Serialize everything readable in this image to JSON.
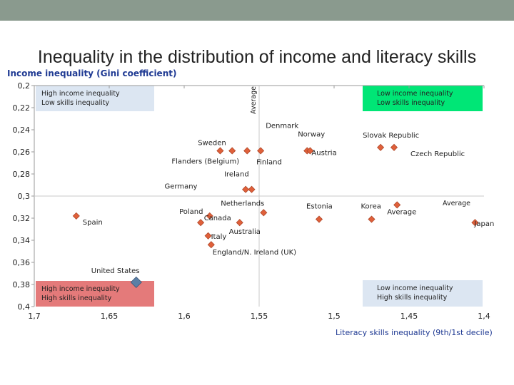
{
  "chart_data": {
    "type": "scatter",
    "title": "Inequality in the distribution of income and literacy skills",
    "ylabel": "Income inequality (Gini coefficient)",
    "xlabel": "Literacy skills inequality (9th/1st decile)",
    "x_reversed": true,
    "y_reversed": true,
    "xlim": [
      1.7,
      1.4
    ],
    "ylim": [
      0.2,
      0.4
    ],
    "x_ticks": [
      1.7,
      1.65,
      1.6,
      1.55,
      1.5,
      1.45,
      1.4
    ],
    "y_ticks": [
      0.2,
      0.22,
      0.24,
      0.26,
      0.28,
      0.3,
      0.32,
      0.34,
      0.36,
      0.38,
      0.4
    ],
    "x_tick_labels": [
      "1,7",
      "1,65",
      "1,6",
      "1,55",
      "1,5",
      "1,45",
      "1,4"
    ],
    "y_tick_labels": [
      "0,2",
      "0,22",
      "0,24",
      "0,26",
      "0,28",
      "0,3",
      "0,32",
      "0,34",
      "0,36",
      "0,38",
      "0,4"
    ],
    "points": [
      {
        "label": "Denmark",
        "x": 1.558,
        "y": 0.259
      },
      {
        "label": "Sweden",
        "x": 1.568,
        "y": 0.259
      },
      {
        "label": "Flanders (Belgium)",
        "x": 1.576,
        "y": 0.259
      },
      {
        "label": "Finland",
        "x": 1.549,
        "y": 0.259
      },
      {
        "label": "Norway",
        "x": 1.518,
        "y": 0.259
      },
      {
        "label": "Austria",
        "x": 1.516,
        "y": 0.259
      },
      {
        "label": "Slovak Republic",
        "x": 1.469,
        "y": 0.256
      },
      {
        "label": "Czech Republic",
        "x": 1.46,
        "y": 0.256
      },
      {
        "label": "Ireland",
        "x": 1.559,
        "y": 0.294
      },
      {
        "label": "Germany",
        "x": 1.555,
        "y": 0.294
      },
      {
        "label": "Netherlands",
        "x": 1.547,
        "y": 0.315
      },
      {
        "label": "Estonia",
        "x": 1.51,
        "y": 0.321
      },
      {
        "label": "Korea",
        "x": 1.475,
        "y": 0.321
      },
      {
        "label": "Average",
        "x": 1.458,
        "y": 0.308
      },
      {
        "label": "Poland",
        "x": 1.589,
        "y": 0.324
      },
      {
        "label": "Canada",
        "x": 1.583,
        "y": 0.318
      },
      {
        "label": "Spain",
        "x": 1.672,
        "y": 0.318
      },
      {
        "label": "Australia",
        "x": 1.563,
        "y": 0.324
      },
      {
        "label": "Japan",
        "x": 1.406,
        "y": 0.324
      },
      {
        "label": "Italy",
        "x": 1.584,
        "y": 0.336
      },
      {
        "label": "England/N. Ireland (UK)",
        "x": 1.582,
        "y": 0.344
      },
      {
        "label": "United States",
        "x": 1.632,
        "y": 0.378,
        "highlight": true
      }
    ],
    "average_lines": {
      "x": 1.55,
      "y": 0.3
    },
    "average_x_label": "Average",
    "average_y_label": "Average",
    "quadrants": [
      {
        "line1": "High income inequality",
        "line2": "Low skills inequality",
        "color": "#dce6f2"
      },
      {
        "line1": "Low income inequality",
        "line2": "Low skills inequality",
        "color": "#00e676"
      },
      {
        "line1": "High income inequality",
        "line2": "High skills inequality",
        "color": "#e47a7a"
      },
      {
        "line1": "Low income inequality",
        "line2": "High skills inequality",
        "color": "#dce6f2"
      }
    ],
    "marker_color": "#e0603a",
    "highlight_color": "#5b7fa6",
    "grid": false
  }
}
